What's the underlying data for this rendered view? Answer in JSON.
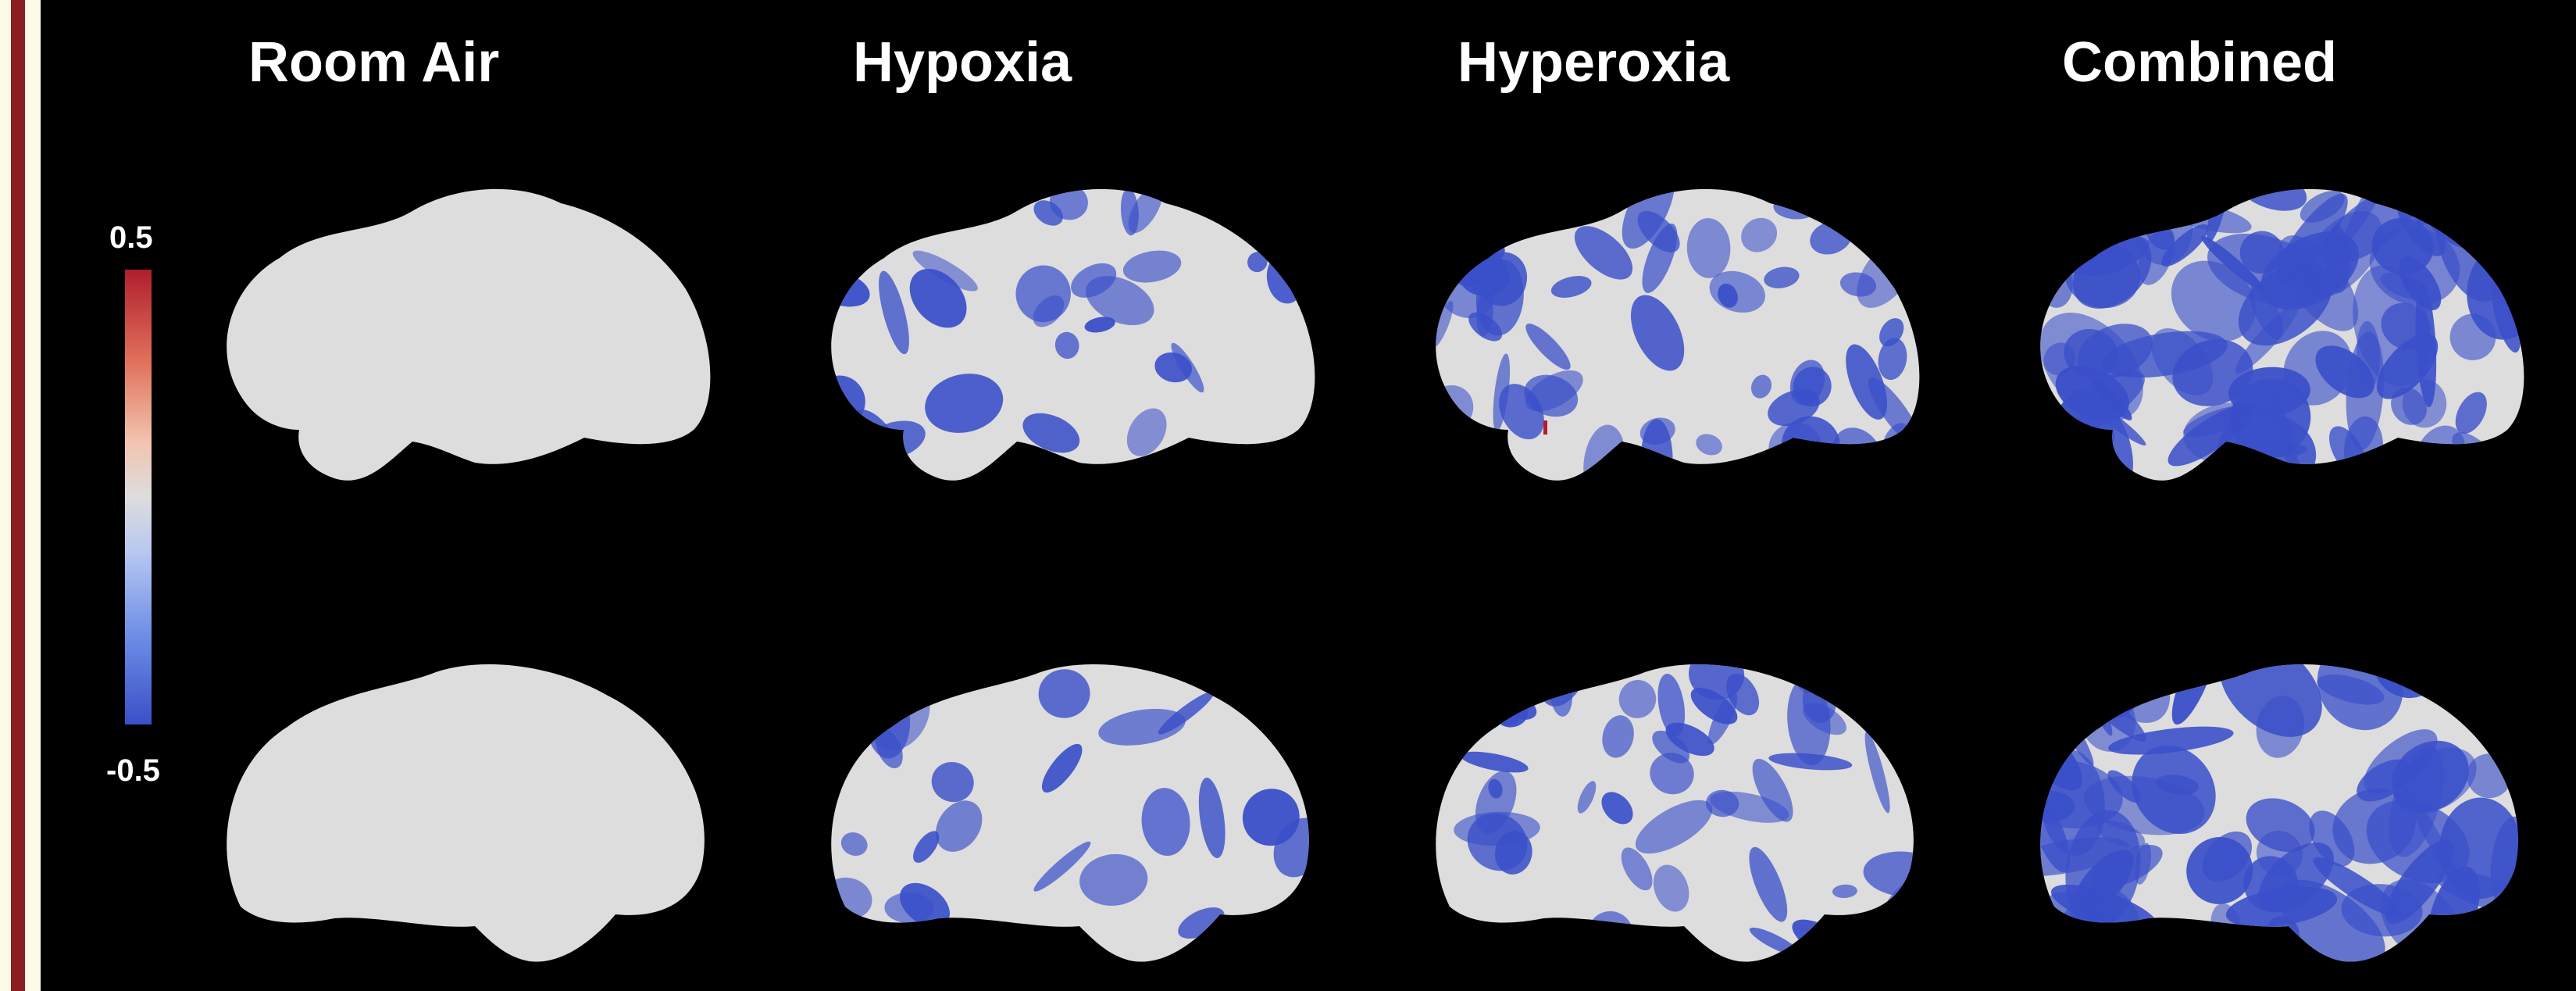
{
  "conditions": [
    "Room Air",
    "Hypoxia",
    "Hyperoxia",
    "Combined"
  ],
  "colorbar": {
    "max_label": "0.5",
    "min_label": "-0.5",
    "max": 0.5,
    "min": -0.5
  },
  "colors": {
    "background": "#000000",
    "brain_base": "#dddddd",
    "negative": "#3a4fc9",
    "positive": "#b01e2d",
    "frame_line": "#8b1f1f",
    "frame_outer": "#fdfbe8"
  }
}
